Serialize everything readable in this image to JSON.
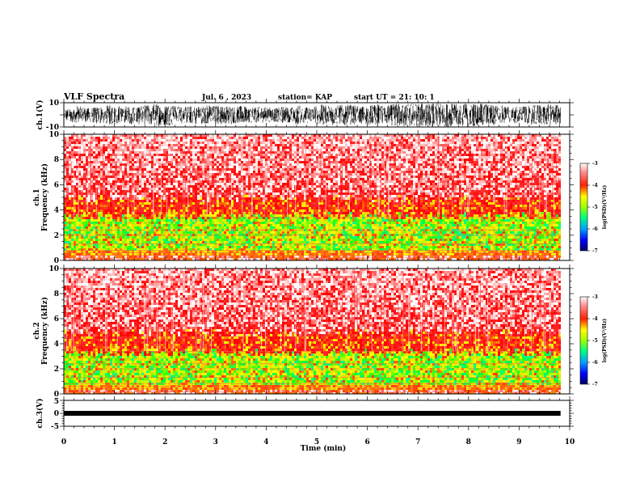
{
  "header": {
    "title": "VLF Spectra",
    "date": "Jul. 6 , 2023",
    "station": "station= KAP",
    "start": "start UT = 21: 10: 1"
  },
  "chart_data": [
    {
      "type": "line",
      "ylabel": "ch.1(V)",
      "ylim": [
        -10,
        10
      ],
      "yticks": [
        "10",
        "-10"
      ],
      "xlim": [
        0,
        10
      ],
      "description_values": {
        "x_end_data": 9.82,
        "amplitude_range": [
          -10,
          10
        ]
      }
    },
    {
      "type": "heatmap",
      "ylabel": "ch.1 Frequency (kHz)",
      "ylim": [
        0,
        10
      ],
      "yticks": [
        "0",
        "2",
        "4",
        "6",
        "8",
        "10"
      ],
      "xlim": [
        0,
        10
      ],
      "bands_khz": {
        "green_yellow": [
          0.8,
          3.6
        ],
        "orange_red": [
          3.6,
          5.0
        ],
        "light_red": [
          5.0,
          10.0
        ]
      },
      "colorbar": {
        "label": "log(PSD)(V²/Hz)",
        "ticks": [
          "-3",
          "-4",
          "-5",
          "-6",
          "-7"
        ],
        "range": [
          -7,
          -3
        ]
      }
    },
    {
      "type": "heatmap",
      "ylabel": "ch.2 Frequency (kHz)",
      "ylim": [
        0,
        10
      ],
      "yticks": [
        "0",
        "2",
        "4",
        "6",
        "8",
        "10"
      ],
      "xlim": [
        0,
        10
      ],
      "bands_khz": {
        "green_yellow": [
          0.8,
          3.4
        ],
        "orange_red": [
          3.4,
          5.0
        ],
        "light_red": [
          5.0,
          10.0
        ]
      },
      "colorbar": {
        "label": "log(PSD)(V²/Hz)",
        "ticks": [
          "-3",
          "-4",
          "-5",
          "-6",
          "-7"
        ],
        "range": [
          -7,
          -3
        ]
      }
    },
    {
      "type": "line",
      "ylabel": "ch.3(V)",
      "ylim": [
        -5,
        5
      ],
      "yticks": [
        "5",
        "0",
        "-5"
      ],
      "xlim": [
        0,
        10
      ],
      "xlabel": "Time (min)",
      "xticks": [
        "0",
        "1",
        "2",
        "3",
        "4",
        "5",
        "6",
        "7",
        "8",
        "9",
        "10"
      ],
      "level_v": 0
    }
  ],
  "colors": {
    "scale": [
      "#000080",
      "#0000ff",
      "#00a0ff",
      "#00ff80",
      "#a0ff00",
      "#ffff00",
      "#ff8000",
      "#ff0000",
      "#ffffff"
    ]
  }
}
